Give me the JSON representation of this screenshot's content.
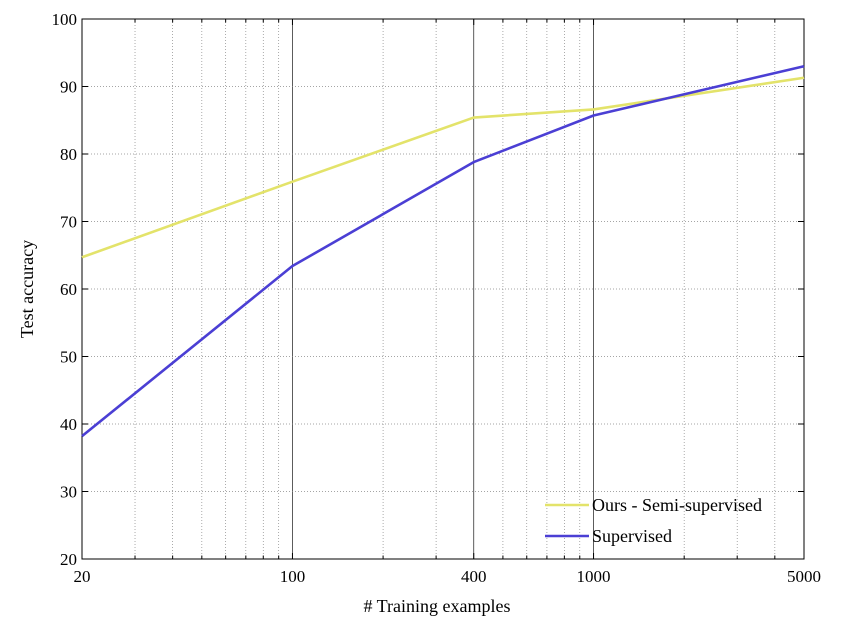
{
  "chart_data": {
    "type": "line",
    "xscale": "log",
    "xlabel": "# Training examples",
    "ylabel": "Test accuracy",
    "xlim": [
      20,
      5000
    ],
    "ylim": [
      20,
      100
    ],
    "xticks": [
      20,
      100,
      400,
      1000,
      5000
    ],
    "xtick_labels": [
      "20",
      "100",
      "400",
      "1000",
      "5000"
    ],
    "yticks": [
      20,
      30,
      40,
      50,
      60,
      70,
      80,
      90,
      100
    ],
    "ytick_labels": [
      "20",
      "30",
      "40",
      "50",
      "60",
      "70",
      "80",
      "90",
      "100"
    ],
    "grid": true,
    "legend_position": "bottom-right",
    "series": [
      {
        "name": "Ours - Semi-supervised",
        "color": "#e3e36a",
        "x": [
          20,
          100,
          400,
          1000,
          5000
        ],
        "values": [
          64.7,
          75.9,
          85.4,
          86.6,
          91.3
        ]
      },
      {
        "name": "Supervised",
        "color": "#4b3fd4",
        "x": [
          20,
          100,
          400,
          1000,
          5000
        ],
        "values": [
          38.2,
          63.4,
          78.8,
          85.7,
          93.0
        ]
      }
    ]
  }
}
